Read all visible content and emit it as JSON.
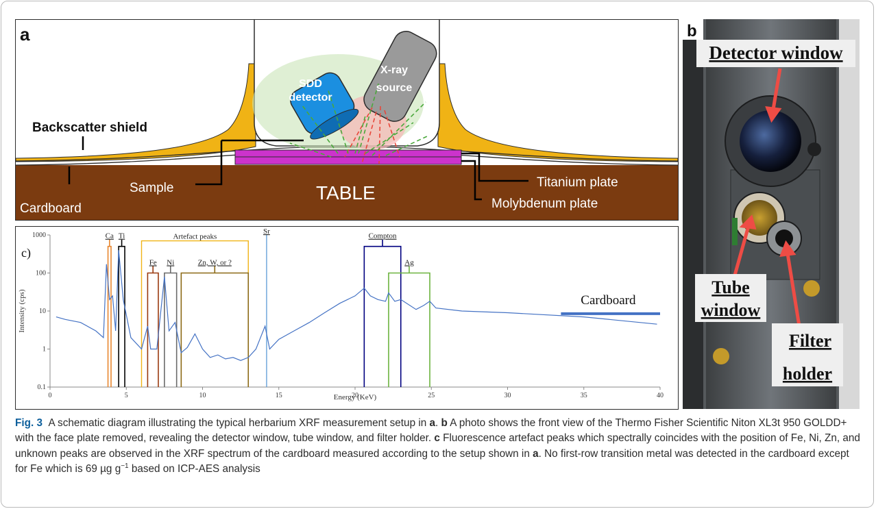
{
  "figure_label": "Fig. 3",
  "caption": {
    "p1": "A schematic diagram illustrating the typical herbarium XRF measurement setup in ",
    "a1": "a",
    "p2": ". ",
    "b1": "b",
    "p3": " A photo shows the front view of the Thermo Fisher Scientific Niton XL3t 950 GOLDD+ with the face plate removed, revealing the detector window, tube window, and filter holder. ",
    "c1": "c",
    "p4": " Fluorescence artefact peaks which spectrally coincides with the position of Fe, Ni, Zn, and unknown peaks are observed in the XRF spectrum of the cardboard measured according to the setup shown in ",
    "a2": "a",
    "p5": ". No first-row transition metal was detected in the cardboard except for Fe which is 69 µg g",
    "sup": "−1",
    "p6": " based on ICP-AES analysis"
  },
  "panel_a": {
    "letter": "a",
    "backscatter_shield": "Backscatter shield",
    "cardboard": "Cardboard",
    "sample": "Sample",
    "table": "TABLE",
    "titanium": "Titanium plate",
    "molybdenum": "Molybdenum plate",
    "detector": [
      "SDD",
      "detector"
    ],
    "source": [
      "X-ray",
      "source"
    ],
    "colors": {
      "table": "#7b3b10",
      "shield": "#f0b315",
      "plate": "#cc33cc",
      "detector": "#1b8fe0",
      "source": "#9a9a9a"
    }
  },
  "panel_b": {
    "letter": "b",
    "detector_window": "Detector window",
    "tube": "Tube",
    "window": "window",
    "filter": "Filter",
    "holder": "holder"
  },
  "chart_data": {
    "type": "line",
    "panel_label": "c)",
    "xlabel": "Energy (KeV)",
    "ylabel": "Intensity (cps)",
    "xlim": [
      0,
      40
    ],
    "ylim": [
      0.1,
      1000
    ],
    "yscale": "log",
    "x_ticks": [
      0,
      5,
      10,
      15,
      20,
      25,
      30,
      35,
      40
    ],
    "y_ticks": [
      0.1,
      1,
      10,
      100,
      1000
    ],
    "y_tick_labels": [
      "0.1",
      "1",
      "10",
      "100",
      "1000"
    ],
    "series": [
      {
        "name": "Cardboard",
        "color": "#4472c4",
        "x": [
          0.4,
          1,
          2,
          3,
          3.5,
          3.7,
          3.9,
          4.1,
          4.3,
          4.5,
          4.8,
          5.3,
          6,
          6.4,
          6.6,
          7,
          7.5,
          7.8,
          8.2,
          8.6,
          9,
          9.5,
          10,
          10.5,
          11,
          11.5,
          12,
          12.5,
          13,
          13.5,
          14.1,
          14.4,
          15,
          16,
          17,
          18,
          19,
          20,
          20.6,
          21,
          21.5,
          22,
          22.2,
          22.6,
          23,
          24,
          24.5,
          24.9,
          25.3,
          27,
          30,
          35,
          39.8
        ],
        "y": [
          7,
          6,
          5,
          3,
          2,
          170,
          20,
          25,
          3,
          400,
          20,
          2,
          1,
          4,
          1,
          1,
          80,
          3,
          5,
          0.8,
          1.1,
          2.5,
          1,
          0.6,
          0.7,
          0.55,
          0.6,
          0.5,
          0.6,
          1,
          4,
          1,
          1.8,
          3,
          5,
          9,
          16,
          25,
          40,
          25,
          20,
          18,
          30,
          18,
          20,
          11,
          14,
          18,
          12,
          10,
          9,
          7,
          4.5
        ]
      }
    ],
    "annotations": [
      {
        "label": "Ca",
        "x0": 3.8,
        "x1": 4.0,
        "top": 500,
        "color": "#e8862f"
      },
      {
        "label": "Ti",
        "x0": 4.5,
        "x1": 4.9,
        "top": 500,
        "color": "#000000"
      },
      {
        "label": "Fe",
        "x0": 6.4,
        "x1": 7.1,
        "top": 100,
        "color": "#9a3a10"
      },
      {
        "label": "Ni",
        "x0": 7.5,
        "x1": 8.3,
        "top": 100,
        "color": "#6a6a6a"
      },
      {
        "label": "Zn, W, or ?",
        "x0": 8.6,
        "x1": 13.0,
        "top": 100,
        "color": "#8b6914"
      },
      {
        "label": "Compton",
        "x0": 20.6,
        "x1": 23.0,
        "top": 500,
        "color": "#000080"
      },
      {
        "label": "Ag",
        "x0": 22.2,
        "x1": 24.9,
        "top": 100,
        "color": "#6cb33f"
      }
    ],
    "group_box": {
      "label": "Artefact peaks",
      "x0": 6.0,
      "x1": 13.0,
      "top": 700,
      "color": "#f0b315"
    },
    "lines": [
      {
        "label": "Sr",
        "x": 14.2,
        "color": "#5b9bd5"
      }
    ]
  }
}
